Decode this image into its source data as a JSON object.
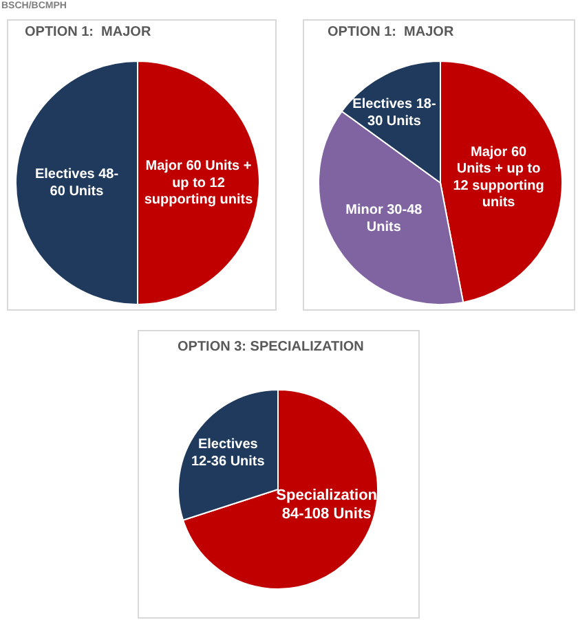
{
  "chart_data": [
    {
      "type": "pie",
      "title": "OPTION 1:  MAJOR",
      "categories": [
        "Major 60 Units + up to 12 supporting units",
        "Electives 48-60 Units"
      ],
      "values": [
        50,
        50
      ],
      "colors": [
        "#c00000",
        "#1f3a5c"
      ],
      "annotations": [
        "BSCH/BCMPH"
      ]
    },
    {
      "type": "pie",
      "title": "OPTION 1:  MAJOR",
      "categories": [
        "Major 60 Units + up to 12 supporting units",
        "Minor 30-48 Units",
        "Electives 18-30 Units"
      ],
      "values": [
        47,
        38,
        15
      ],
      "colors": [
        "#c00000",
        "#8064a2",
        "#1f3a5c"
      ]
    },
    {
      "type": "pie",
      "title": "OPTION 3: SPECIALIZATION",
      "categories": [
        "Specialization 84-108 Units",
        "Electives 12-36 Units"
      ],
      "values": [
        70,
        30
      ],
      "colors": [
        "#c00000",
        "#1f3a5c"
      ]
    }
  ]
}
